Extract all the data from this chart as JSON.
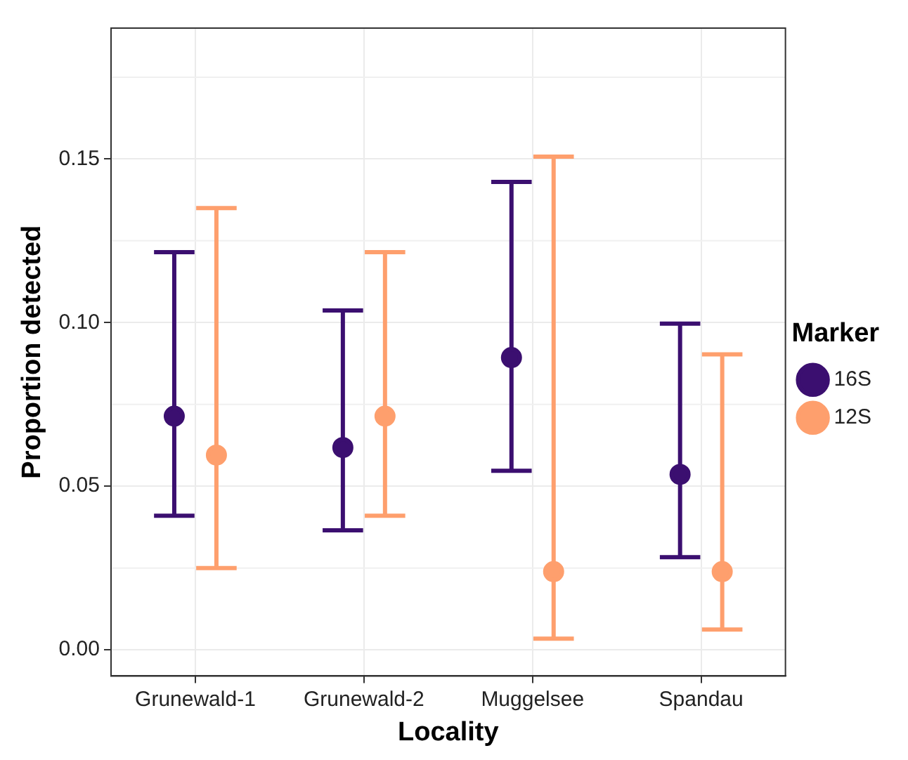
{
  "chart_data": {
    "type": "scatter",
    "xlabel": "Locality",
    "ylabel": "Proportion detected",
    "legend_title": "Marker",
    "categories": [
      "Grunewald-1",
      "Grunewald-2",
      "Muggelsee",
      "Spandau"
    ],
    "series": [
      {
        "name": "16S",
        "color": "#3b0f70",
        "values": [
          0.0714,
          0.0618,
          0.0893,
          0.0536
        ],
        "errors": [
          [
            0.041,
            0.1215
          ],
          [
            0.0365,
            0.1037
          ],
          [
            0.0547,
            0.143
          ],
          [
            0.0283,
            0.0997
          ]
        ]
      },
      {
        "name": "12S",
        "color": "#fe9f6d",
        "values": [
          0.0595,
          0.0714,
          0.0239,
          0.0239
        ],
        "errors": [
          [
            0.025,
            0.135
          ],
          [
            0.041,
            0.1215
          ],
          [
            0.0034,
            0.1507
          ],
          [
            0.0062,
            0.0903
          ]
        ]
      }
    ],
    "ylim": [
      -0.008,
      0.19
    ],
    "yticks": [
      {
        "value": 0,
        "label": "0.00"
      },
      0.05,
      {
        "value": 0.1,
        "label": "0.10"
      },
      0.15
    ],
    "grid": true,
    "legend": "right",
    "marker": "circle"
  }
}
